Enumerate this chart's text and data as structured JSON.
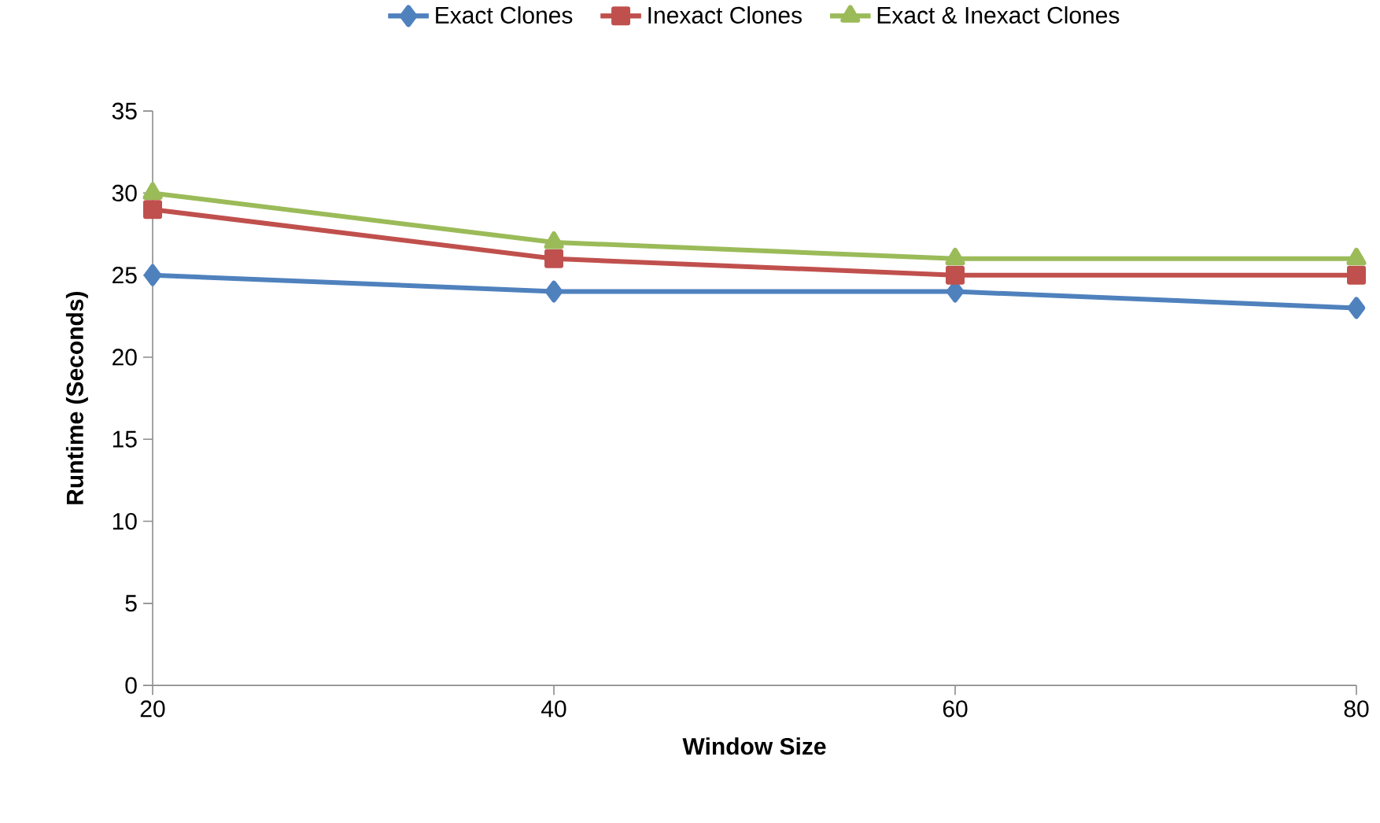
{
  "chart_data": {
    "type": "line",
    "xlabel": "Window Size",
    "ylabel": "Runtime (Seconds)",
    "x": [
      20,
      40,
      60,
      80
    ],
    "series": [
      {
        "name": "Exact Clones",
        "color": "#4f81bd",
        "marker": "diamond",
        "values": [
          25,
          24,
          24,
          23
        ]
      },
      {
        "name": "Inexact Clones",
        "color": "#c0504d",
        "marker": "square",
        "values": [
          29,
          26,
          25,
          25
        ]
      },
      {
        "name": "Exact & Inexact Clones",
        "color": "#9bbb59",
        "marker": "triangle",
        "values": [
          30,
          27,
          26,
          26
        ]
      }
    ],
    "xlim": [
      20,
      80
    ],
    "xticks": [
      20,
      40,
      60,
      80
    ],
    "ylim": [
      0,
      35
    ],
    "yticks": [
      0,
      5,
      10,
      15,
      20,
      25,
      30,
      35
    ],
    "grid": false,
    "legend": "top",
    "line_style": "solid"
  }
}
